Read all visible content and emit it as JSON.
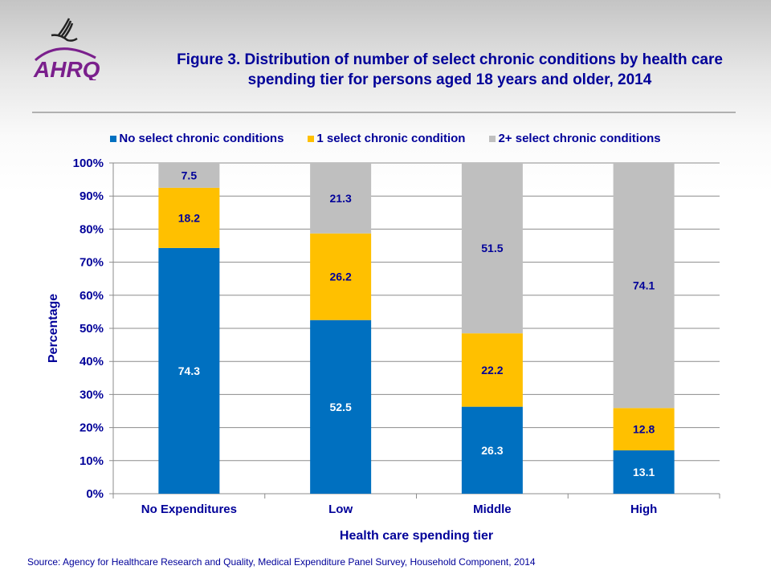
{
  "logo_text": "AHRQ",
  "title": "Figure 3. Distribution of number of select chronic conditions by health care spending tier for persons aged 18 years and older, 2014",
  "source": "Source: Agency for Healthcare Research and Quality, Medical Expenditure Panel Survey,  Household Component, 2014",
  "chart_data": {
    "type": "bar",
    "stacked": true,
    "title": "Figure 3. Distribution of number of select chronic conditions by health care spending tier for persons aged 18 years and older, 2014",
    "xlabel": "Health care spending tier",
    "ylabel": "Percentage",
    "ylim": [
      0,
      100
    ],
    "yticks": [
      "0%",
      "10%",
      "20%",
      "30%",
      "40%",
      "50%",
      "60%",
      "70%",
      "80%",
      "90%",
      "100%"
    ],
    "grid": true,
    "legend_position": "top",
    "categories": [
      "No Expenditures",
      "Low",
      "Middle",
      "High"
    ],
    "series": [
      {
        "name": "No select chronic conditions",
        "color": "#0070C0",
        "label_color": "#ffffff",
        "values": [
          74.3,
          52.5,
          26.3,
          13.1
        ]
      },
      {
        "name": "1 select chronic condition",
        "color": "#FFC000",
        "label_color": "#000099",
        "values": [
          18.2,
          26.2,
          22.2,
          12.8
        ]
      },
      {
        "name": "2+ select chronic conditions",
        "color": "#BFBFBF",
        "label_color": "#000099",
        "values": [
          7.5,
          21.3,
          51.5,
          74.1
        ]
      }
    ]
  }
}
